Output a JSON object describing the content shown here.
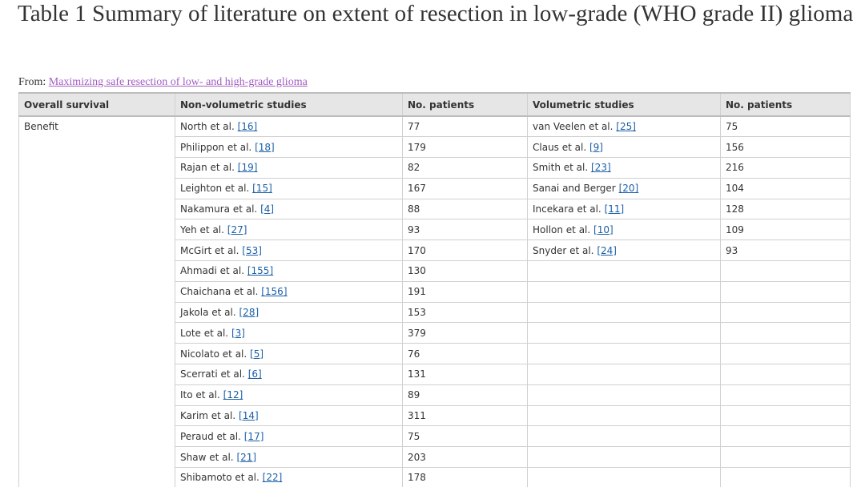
{
  "title": "Table 1 Summary of literature on extent of resection in low-grade (WHO grade II) glioma",
  "from_label": "From:",
  "from_link": "Maximizing safe resection of low- and high-grade glioma",
  "columns": [
    "Overall survival",
    "Non-volumetric studies",
    "No. patients",
    "Volumetric studies",
    "No. patients"
  ],
  "group_label": "Benefit",
  "rows": [
    {
      "nv_author": "North et al.",
      "nv_ref": "[16]",
      "nv_n": "77",
      "v_author": "van Veelen et al.",
      "v_ref": "[25]",
      "v_n": "75"
    },
    {
      "nv_author": "Philippon et al.",
      "nv_ref": "[18]",
      "nv_n": "179",
      "v_author": "Claus et al.",
      "v_ref": "[9]",
      "v_n": "156"
    },
    {
      "nv_author": "Rajan et al.",
      "nv_ref": "[19]",
      "nv_n": "82",
      "v_author": "Smith et al.",
      "v_ref": "[23]",
      "v_n": "216"
    },
    {
      "nv_author": "Leighton et al.",
      "nv_ref": "[15]",
      "nv_n": "167",
      "v_author": "Sanai and Berger",
      "v_ref": "[20]",
      "v_n": "104"
    },
    {
      "nv_author": "Nakamura et al.",
      "nv_ref": "[4]",
      "nv_n": "88",
      "v_author": "Incekara et al.",
      "v_ref": "[11]",
      "v_n": "128"
    },
    {
      "nv_author": "Yeh et al.",
      "nv_ref": "[27]",
      "nv_n": "93",
      "v_author": "Hollon et al.",
      "v_ref": "[10]",
      "v_n": "109"
    },
    {
      "nv_author": "McGirt et al.",
      "nv_ref": "[53]",
      "nv_n": "170",
      "v_author": "Snyder et al.",
      "v_ref": "[24]",
      "v_n": "93"
    },
    {
      "nv_author": "Ahmadi et al.",
      "nv_ref": "[155]",
      "nv_n": "130",
      "v_author": "",
      "v_ref": "",
      "v_n": ""
    },
    {
      "nv_author": "Chaichana et al.",
      "nv_ref": "[156]",
      "nv_n": "191",
      "v_author": "",
      "v_ref": "",
      "v_n": ""
    },
    {
      "nv_author": "Jakola et al.",
      "nv_ref": "[28]",
      "nv_n": "153",
      "v_author": "",
      "v_ref": "",
      "v_n": ""
    },
    {
      "nv_author": "Lote et al.",
      "nv_ref": "[3]",
      "nv_n": "379",
      "v_author": "",
      "v_ref": "",
      "v_n": ""
    },
    {
      "nv_author": "Nicolato et al.",
      "nv_ref": "[5]",
      "nv_n": "76",
      "v_author": "",
      "v_ref": "",
      "v_n": ""
    },
    {
      "nv_author": "Scerrati et al.",
      "nv_ref": "[6]",
      "nv_n": "131",
      "v_author": "",
      "v_ref": "",
      "v_n": ""
    },
    {
      "nv_author": "Ito et al.",
      "nv_ref": "[12]",
      "nv_n": "89",
      "v_author": "",
      "v_ref": "",
      "v_n": ""
    },
    {
      "nv_author": "Karim et al.",
      "nv_ref": "[14]",
      "nv_n": "311",
      "v_author": "",
      "v_ref": "",
      "v_n": ""
    },
    {
      "nv_author": "Peraud et al.",
      "nv_ref": "[17]",
      "nv_n": "75",
      "v_author": "",
      "v_ref": "",
      "v_n": ""
    },
    {
      "nv_author": "Shaw et al.",
      "nv_ref": "[21]",
      "nv_n": "203",
      "v_author": "",
      "v_ref": "",
      "v_n": ""
    },
    {
      "nv_author": "Shibamoto et al.",
      "nv_ref": "[22]",
      "nv_n": "178",
      "v_author": "",
      "v_ref": "",
      "v_n": ""
    }
  ]
}
